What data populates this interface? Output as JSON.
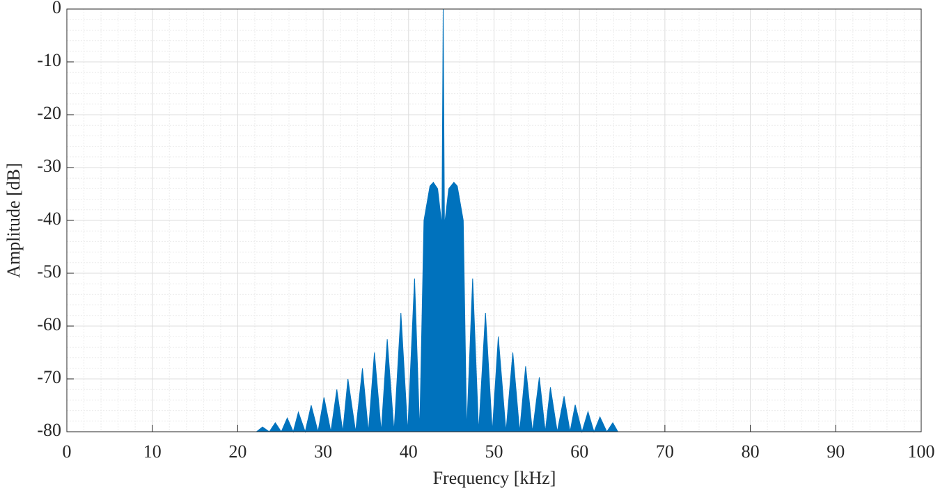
{
  "chart_data": {
    "type": "area",
    "xlabel": "Frequency [kHz]",
    "ylabel": "Amplitude [dB]",
    "color": "#0072bd",
    "x": [
      22.2,
      22.9,
      23.7,
      24.4,
      25.1,
      25.8,
      26.5,
      27.1,
      27.9,
      28.6,
      29.4,
      30.1,
      30.9,
      31.6,
      32.3,
      32.9,
      33.8,
      34.6,
      35.3,
      36.0,
      36.8,
      37.5,
      38.3,
      39.1,
      39.9,
      40.7,
      41.3,
      41.8,
      42.5,
      42.9,
      43.4,
      43.9,
      44.05,
      44.2,
      44.7,
      45.3,
      45.7,
      46.4,
      46.8,
      47.5,
      48.2,
      49.0,
      49.8,
      50.5,
      51.4,
      52.2,
      53.0,
      53.7,
      54.5,
      55.3,
      56.0,
      56.6,
      57.4,
      58.2,
      58.9,
      59.5,
      60.3,
      61.0,
      61.7,
      62.4,
      63.2,
      63.9,
      64.5
    ],
    "values": [
      -80,
      -79.1,
      -80,
      -78.3,
      -80,
      -77.4,
      -80,
      -76.3,
      -80,
      -75,
      -80,
      -73.5,
      -80,
      -72,
      -80,
      -70,
      -80,
      -68,
      -80,
      -65,
      -80,
      -62.5,
      -80,
      -57.5,
      -80,
      -51,
      -80,
      -40,
      -33.5,
      -32.8,
      -34,
      -41,
      0,
      -41,
      -34,
      -32.8,
      -33.5,
      -40,
      -80,
      -51,
      -80,
      -57.5,
      -80,
      -62,
      -80,
      -65,
      -80,
      -67.6,
      -80,
      -69.7,
      -80,
      -71.6,
      -80,
      -73.3,
      -80,
      -74.9,
      -80,
      -76.2,
      -80,
      -77.2,
      -80,
      -78.3,
      -80
    ],
    "xlim": [
      0,
      100
    ],
    "ylim": [
      -80,
      0
    ],
    "xticks": [
      0,
      10,
      20,
      30,
      40,
      50,
      60,
      70,
      80,
      90,
      100
    ],
    "yticks": [
      -80,
      -70,
      -60,
      -50,
      -40,
      -30,
      -20,
      -10,
      0
    ],
    "grid": true,
    "minor_grid": true
  }
}
